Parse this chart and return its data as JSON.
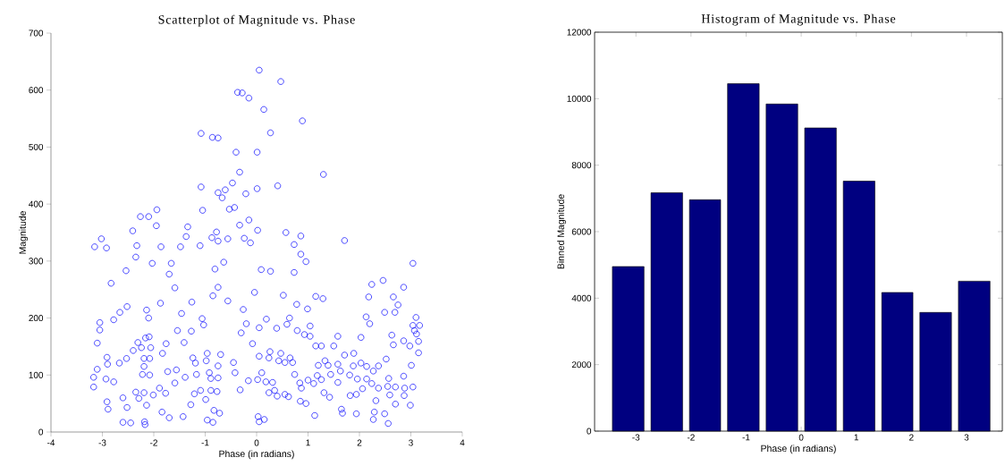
{
  "chart_data": [
    {
      "type": "scatter",
      "title": "Scatterplot of Magnitude vs. Phase",
      "xlabel": "Phase (in radians)",
      "ylabel": "Magnitude",
      "color": "#0000ff",
      "marker": "circle",
      "xlim": [
        -4,
        4
      ],
      "ylim": [
        0,
        700
      ],
      "xticks": [
        -4,
        -3,
        -2,
        -1,
        0,
        1,
        2,
        3,
        4
      ],
      "yticks": [
        0,
        100,
        200,
        300,
        400,
        500,
        600,
        700
      ],
      "x": [
        0.05,
        0.47,
        -0.37,
        -0.28,
        -0.15,
        0.14,
        0.89,
        -1.08,
        -0.86,
        -0.75,
        0.27,
        -0.4,
        0.01,
        -0.33,
        1.3,
        -1.08,
        -0.47,
        -0.61,
        -0.75,
        -0.67,
        -0.21,
        0.01,
        0.41,
        -1.94,
        -2.26,
        -2.1,
        -1.95,
        -2.41,
        -1.05,
        -0.53,
        -0.43,
        -0.15,
        -0.33,
        0.02,
        -1.34,
        -1.37,
        -0.78,
        -0.87,
        -0.75,
        -0.56,
        -0.24,
        -0.12,
        0.57,
        0.86,
        0.73,
        1.71,
        -3.02,
        -3.15,
        -2.92,
        -2.33,
        -1.86,
        -1.48,
        -1.1,
        -2.54,
        -2.83,
        -2.03,
        -2.35,
        -1.66,
        -1.7,
        -1.59,
        -0.64,
        -0.81,
        -0.75,
        0.09,
        0.27,
        0.73,
        0.96,
        0.86,
        3.04,
        2.46,
        2.24,
        2.86,
        2.18,
        2.66,
        0.52,
        1.15,
        1.29,
        -0.04,
        -0.85,
        -0.56,
        -2.52,
        -2.66,
        -2.78,
        -3.05,
        -3.05,
        -3.1,
        -1.87,
        -2.14,
        -2.1,
        -1.26,
        -1.46,
        -1.06,
        -1.03,
        -1.27,
        -1.54,
        -1.41,
        -0.26,
        -0.2,
        0.05,
        0.19,
        -0.3,
        -0.08,
        0.78,
        0.99,
        0.64,
        0.59,
        0.39,
        0.79,
        1.04,
        0.93,
        3.1,
        3.04,
        3.17,
        3.07,
        3.11,
        3.15,
        3.15,
        2.13,
        2.2,
        2.03,
        2.63,
        2.66,
        2.86,
        2.98,
        2.49,
        1.58,
        1.5,
        1.71,
        1.89,
        1.04,
        1.15,
        1.26,
        -3.1,
        -3.17,
        -3.17,
        -2.93,
        -2.78,
        -2.67,
        -2.53,
        -2.91,
        -2.89,
        -2.6,
        -2.52,
        -2.6,
        -2.45,
        -2.18,
        -2.17,
        -2.91,
        -2.9,
        -2.4,
        -2.31,
        -2.24,
        -2.16,
        -2.09,
        -2.06,
        -2.19,
        -2.08,
        -2.19,
        -2.22,
        -2.08,
        -2.35,
        -2.19,
        -2.01,
        -1.89,
        -1.77,
        -2.29,
        -2.14,
        -1.84,
        -1.7,
        -1.83,
        -1.76,
        -1.73,
        -1.56,
        -1.59,
        -1.39,
        -1.43,
        -1.28,
        -1.24,
        -1.19,
        -1.17,
        -1.21,
        -1.09,
        -0.99,
        -0.96,
        -0.85,
        -0.83,
        -0.72,
        -0.96,
        -0.98,
        -0.92,
        -0.89,
        -0.75,
        -0.7,
        -0.89,
        -0.77,
        -0.75,
        -0.45,
        -0.42,
        -0.32,
        -0.16,
        0.05,
        0.1,
        0.02,
        0.18,
        0.03,
        0.15,
        0.05,
        0.26,
        0.24,
        0.47,
        0.43,
        0.55,
        0.65,
        0.7,
        0.74,
        0.31,
        0.35,
        0.4,
        0.55,
        0.62,
        0.24,
        0.85,
        0.96,
        1.13,
        0.84,
        0.87,
        1.0,
        1.11,
        1.18,
        1.26,
        1.2,
        1.33,
        1.39,
        1.44,
        1.58,
        1.63,
        1.58,
        1.31,
        1.42,
        1.65,
        1.67,
        1.88,
        1.81,
        1.96,
        1.82,
        1.94,
        2.06,
        1.94,
        2.03,
        2.14,
        2.27,
        2.37,
        2.52,
        2.14,
        2.24,
        2.37,
        2.32,
        2.57,
        2.55,
        2.7,
        2.86,
        2.88,
        2.87,
        3.04,
        2.99,
        2.7,
        2.59,
        2.49,
        2.56,
        2.27,
        2.29,
        3.01,
        2.69,
        2.75
      ],
      "values": [
        635,
        615,
        596,
        595,
        586,
        566,
        546,
        524,
        517,
        516,
        525,
        491,
        491,
        456,
        452,
        430,
        437,
        425,
        420,
        411,
        418,
        427,
        432,
        390,
        378,
        378,
        362,
        353,
        389,
        391,
        394,
        372,
        363,
        354,
        360,
        343,
        351,
        341,
        335,
        339,
        340,
        332,
        350,
        344,
        329,
        336,
        339,
        325,
        323,
        327,
        325,
        325,
        327,
        283,
        261,
        296,
        307,
        296,
        277,
        253,
        298,
        286,
        254,
        285,
        282,
        280,
        299,
        312,
        296,
        266,
        259,
        254,
        237,
        237,
        240,
        238,
        234,
        245,
        239,
        230,
        220,
        210,
        197,
        192,
        179,
        156,
        226,
        214,
        200,
        228,
        208,
        199,
        188,
        177,
        178,
        157,
        215,
        190,
        183,
        198,
        174,
        155,
        224,
        216,
        200,
        189,
        182,
        178,
        186,
        171,
        201,
        187,
        187,
        178,
        172,
        159,
        139,
        202,
        190,
        166,
        170,
        153,
        160,
        151,
        210,
        168,
        151,
        135,
        138,
        168,
        151,
        151,
        110,
        96,
        79,
        93,
        88,
        121,
        129,
        53,
        40,
        60,
        43,
        17,
        16,
        18,
        13,
        131,
        119,
        143,
        157,
        148,
        165,
        167,
        148,
        129,
        129,
        115,
        101,
        100,
        70,
        69,
        65,
        77,
        68,
        59,
        47,
        35,
        25,
        138,
        155,
        106,
        109,
        86,
        96,
        27,
        48,
        130,
        121,
        101,
        67,
        73,
        57,
        21,
        17,
        38,
        33,
        138,
        125,
        104,
        94,
        116,
        136,
        73,
        71,
        95,
        122,
        104,
        74,
        90,
        133,
        104,
        92,
        88,
        27,
        22,
        18,
        141,
        130,
        138,
        125,
        122,
        130,
        122,
        101,
        87,
        73,
        63,
        66,
        62,
        69,
        54,
        50,
        29,
        86,
        77,
        91,
        85,
        99,
        92,
        117,
        125,
        117,
        101,
        119,
        107,
        87,
        69,
        61,
        40,
        33,
        116,
        100,
        93,
        64,
        66,
        76,
        32,
        121,
        115,
        107,
        116,
        128,
        93,
        85,
        77,
        55,
        94,
        80,
        79,
        98,
        77,
        64,
        79,
        47,
        49,
        65,
        32,
        15,
        22,
        35,
        117,
        210,
        223
      ]
    },
    {
      "type": "histogram",
      "title": "Histogram of Magnitude vs. Phase",
      "xlabel": "Phase (in radians)",
      "ylabel": "Binned Magnitude",
      "color": "#000080",
      "xlim": [
        -3.75,
        3.65
      ],
      "ylim": [
        0,
        12000
      ],
      "xticks": [
        -3,
        -2,
        -1,
        0,
        1,
        2,
        3
      ],
      "yticks": [
        0,
        2000,
        4000,
        6000,
        8000,
        10000,
        12000
      ],
      "bins": [
        -3.49,
        -2.79,
        -2.09,
        -1.4,
        -0.7,
        0.0,
        0.7,
        1.4,
        2.09,
        2.79,
        3.49
      ],
      "values": [
        4950,
        7170,
        6960,
        10450,
        9840,
        9120,
        7520,
        4170,
        3570,
        4510
      ]
    }
  ]
}
